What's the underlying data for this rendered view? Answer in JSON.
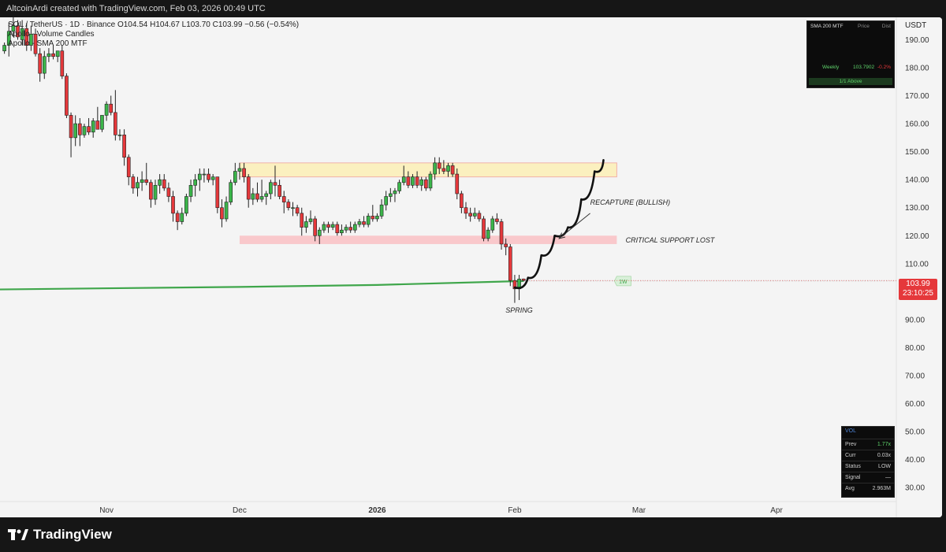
{
  "header": {
    "credit": "AltcoinArdi created with TradingView.com, Feb 03, 2026 00:49 UTC"
  },
  "legend": {
    "symbol_line": "SOL / TetherUS · 1D · Binance  O104.54  H104.67  L103.70  C103.99  −0.56 (−0.54%)",
    "indicator_1": "Apollo - Volume Candles",
    "indicator_2": "Apollo - SMA 200 MTF"
  },
  "currency": "USDT",
  "last_price": {
    "value": "103.99",
    "countdown": "23:10:25"
  },
  "sma_table": {
    "headers": [
      "SMA 200 MTF",
      "Price",
      "Dist"
    ],
    "row": {
      "tf": "Weekly",
      "price": "103.7902",
      "dist": "-0.2%"
    },
    "footer": "1/1 Above"
  },
  "vol_table": {
    "title": "VOL",
    "rows": [
      {
        "k": "Prev",
        "v": "1.77x"
      },
      {
        "k": "Curr",
        "v": "0.03x"
      },
      {
        "k": "Status",
        "v": "LOW"
      },
      {
        "k": "Signal",
        "v": "—"
      },
      {
        "k": "Avg",
        "v": "2.963M"
      }
    ]
  },
  "brand": "TradingView",
  "chart_data": {
    "type": "candlestick",
    "y_axis": {
      "ticks": [
        190,
        180,
        170,
        160,
        150,
        140,
        130,
        120,
        110,
        100,
        90,
        80,
        70,
        60,
        50,
        40,
        30
      ],
      "range": [
        25,
        198
      ]
    },
    "x_axis": {
      "labels": [
        "Nov",
        "Dec",
        "2026",
        "Feb",
        "Mar",
        "Apr"
      ],
      "label_dates": [
        "2025-11-01",
        "2025-12-01",
        "2026-01-01",
        "2026-02-01",
        "2026-03-01",
        "2026-04-01"
      ]
    },
    "x_range": [
      "2025-10-08",
      "2026-04-28"
    ],
    "candles": [
      [
        "2025-10-09",
        186,
        189,
        185,
        188
      ],
      [
        "2025-10-10",
        188,
        196,
        184,
        193
      ],
      [
        "2025-10-11",
        193,
        198,
        191,
        195
      ],
      [
        "2025-10-12",
        195,
        197,
        190,
        191
      ],
      [
        "2025-10-13",
        190,
        197,
        188,
        194
      ],
      [
        "2025-10-14",
        194,
        196,
        186,
        188
      ],
      [
        "2025-10-15",
        188,
        195,
        186,
        192
      ],
      [
        "2025-10-16",
        192,
        194,
        184,
        185
      ],
      [
        "2025-10-17",
        185,
        187,
        175,
        178
      ],
      [
        "2025-10-18",
        178,
        186,
        176,
        184
      ],
      [
        "2025-10-19",
        184,
        187,
        182,
        185
      ],
      [
        "2025-10-20",
        185,
        188,
        183,
        184
      ],
      [
        "2025-10-21",
        184,
        186,
        182,
        186
      ],
      [
        "2025-10-22",
        186,
        188,
        176,
        177
      ],
      [
        "2025-10-23",
        177,
        178,
        162,
        163
      ],
      [
        "2025-10-24",
        163,
        164,
        148,
        155
      ],
      [
        "2025-10-25",
        155,
        163,
        152,
        160
      ],
      [
        "2025-10-26",
        160,
        162,
        152,
        156
      ],
      [
        "2025-10-27",
        156,
        160,
        155,
        159
      ],
      [
        "2025-10-28",
        159,
        162,
        156,
        157
      ],
      [
        "2025-10-29",
        157,
        162,
        155,
        161
      ],
      [
        "2025-10-30",
        161,
        166,
        158,
        158
      ],
      [
        "2025-10-31",
        158,
        163,
        157,
        163
      ],
      [
        "2025-11-01",
        163,
        168,
        161,
        167
      ],
      [
        "2025-11-02",
        167,
        170,
        163,
        164
      ],
      [
        "2025-11-03",
        164,
        172,
        154,
        156
      ],
      [
        "2025-11-04",
        156,
        158,
        154,
        156
      ],
      [
        "2025-11-05",
        156,
        158,
        145,
        148
      ],
      [
        "2025-11-06",
        148,
        149,
        138,
        141
      ],
      [
        "2025-11-07",
        141,
        142,
        135,
        137
      ],
      [
        "2025-11-08",
        137,
        141,
        134,
        139
      ],
      [
        "2025-11-09",
        139,
        143,
        136,
        140
      ],
      [
        "2025-11-10",
        140,
        146,
        138,
        139
      ],
      [
        "2025-11-11",
        139,
        140,
        130,
        133
      ],
      [
        "2025-11-12",
        133,
        140,
        131,
        138
      ],
      [
        "2025-11-13",
        138,
        142,
        135,
        140
      ],
      [
        "2025-11-14",
        140,
        142,
        136,
        137
      ],
      [
        "2025-11-15",
        137,
        139,
        132,
        134
      ],
      [
        "2025-11-16",
        134,
        136,
        125,
        128
      ],
      [
        "2025-11-17",
        128,
        129,
        122,
        125
      ],
      [
        "2025-11-18",
        125,
        130,
        124,
        128
      ],
      [
        "2025-11-19",
        128,
        135,
        127,
        134
      ],
      [
        "2025-11-20",
        134,
        140,
        132,
        138
      ],
      [
        "2025-11-21",
        138,
        142,
        134,
        140
      ],
      [
        "2025-11-22",
        140,
        144,
        136,
        142
      ],
      [
        "2025-11-23",
        142,
        144,
        139,
        142
      ],
      [
        "2025-11-24",
        142,
        144,
        139,
        140
      ],
      [
        "2025-11-25",
        140,
        142,
        138,
        141
      ],
      [
        "2025-11-26",
        141,
        141,
        128,
        130
      ],
      [
        "2025-11-27",
        130,
        133,
        123,
        126
      ],
      [
        "2025-11-28",
        126,
        134,
        125,
        132
      ],
      [
        "2025-11-29",
        132,
        140,
        131,
        139
      ],
      [
        "2025-11-30",
        139,
        146,
        138,
        143
      ],
      [
        "2025-12-01",
        143,
        146,
        140,
        144
      ],
      [
        "2025-12-02",
        144,
        146,
        139,
        141
      ],
      [
        "2025-12-03",
        141,
        142,
        130,
        133
      ],
      [
        "2025-12-04",
        133,
        137,
        131,
        135
      ],
      [
        "2025-12-05",
        135,
        139,
        132,
        133
      ],
      [
        "2025-12-06",
        133,
        140,
        132,
        134
      ],
      [
        "2025-12-07",
        134,
        136,
        131,
        135
      ],
      [
        "2025-12-08",
        135,
        140,
        133,
        139
      ],
      [
        "2025-12-09",
        139,
        145,
        134,
        138
      ],
      [
        "2025-12-10",
        138,
        140,
        133,
        134
      ],
      [
        "2025-12-11",
        134,
        136,
        128,
        132
      ],
      [
        "2025-12-12",
        132,
        133,
        129,
        130
      ],
      [
        "2025-12-13",
        130,
        132,
        127,
        130
      ],
      [
        "2025-12-14",
        130,
        131,
        127,
        128
      ],
      [
        "2025-12-15",
        128,
        130,
        120,
        123
      ],
      [
        "2025-12-16",
        123,
        127,
        121,
        125
      ],
      [
        "2025-12-17",
        125,
        129,
        124,
        126
      ],
      [
        "2025-12-18",
        126,
        127,
        118,
        120
      ],
      [
        "2025-12-19",
        120,
        123,
        117,
        122
      ],
      [
        "2025-12-20",
        122,
        125,
        121,
        124
      ],
      [
        "2025-12-21",
        124,
        125,
        121,
        123
      ],
      [
        "2025-12-22",
        123,
        125,
        122,
        124
      ],
      [
        "2025-12-23",
        124,
        125,
        120,
        121
      ],
      [
        "2025-12-24",
        121,
        124,
        120,
        122
      ],
      [
        "2025-12-25",
        122,
        124,
        121,
        123
      ],
      [
        "2025-12-26",
        123,
        125,
        121,
        122
      ],
      [
        "2025-12-27",
        122,
        125,
        121,
        124
      ],
      [
        "2025-12-28",
        124,
        126,
        123,
        125
      ],
      [
        "2025-12-29",
        125,
        127,
        123,
        124
      ],
      [
        "2025-12-30",
        124,
        128,
        123,
        127
      ],
      [
        "2025-12-31",
        127,
        131,
        125,
        126
      ],
      [
        "2026-01-01",
        126,
        128,
        125,
        127
      ],
      [
        "2026-01-02",
        127,
        133,
        126,
        131
      ],
      [
        "2026-01-03",
        131,
        136,
        129,
        134
      ],
      [
        "2026-01-04",
        134,
        137,
        132,
        135
      ],
      [
        "2026-01-05",
        135,
        137,
        132,
        136
      ],
      [
        "2026-01-06",
        136,
        140,
        135,
        139
      ],
      [
        "2026-01-07",
        139,
        145,
        138,
        141
      ],
      [
        "2026-01-08",
        141,
        143,
        137,
        138
      ],
      [
        "2026-01-09",
        138,
        142,
        137,
        141
      ],
      [
        "2026-01-10",
        141,
        143,
        137,
        138
      ],
      [
        "2026-01-11",
        138,
        141,
        136,
        140
      ],
      [
        "2026-01-12",
        140,
        141,
        136,
        137
      ],
      [
        "2026-01-13",
        137,
        143,
        136,
        142
      ],
      [
        "2026-01-14",
        142,
        148,
        140,
        146
      ],
      [
        "2026-01-15",
        146,
        148,
        142,
        144
      ],
      [
        "2026-01-16",
        144,
        147,
        142,
        143
      ],
      [
        "2026-01-17",
        143,
        146,
        141,
        145
      ],
      [
        "2026-01-18",
        145,
        146,
        141,
        142
      ],
      [
        "2026-01-19",
        142,
        144,
        133,
        135
      ],
      [
        "2026-01-20",
        135,
        136,
        128,
        130
      ],
      [
        "2026-01-21",
        130,
        132,
        126,
        128
      ],
      [
        "2026-01-22",
        128,
        130,
        125,
        127
      ],
      [
        "2026-01-23",
        127,
        130,
        126,
        128
      ],
      [
        "2026-01-24",
        128,
        129,
        125,
        126
      ],
      [
        "2026-01-25",
        126,
        127,
        118,
        119
      ],
      [
        "2026-01-26",
        119,
        123,
        118,
        122
      ],
      [
        "2026-01-27",
        122,
        127,
        121,
        126
      ],
      [
        "2026-01-28",
        126,
        128,
        124,
        125
      ],
      [
        "2026-01-29",
        125,
        126,
        115,
        117
      ],
      [
        "2026-01-30",
        117,
        119,
        113,
        116
      ],
      [
        "2026-01-31",
        116,
        117,
        102,
        104
      ],
      [
        "2026-02-01",
        104,
        106,
        96,
        101
      ],
      [
        "2026-02-02",
        101,
        106,
        97,
        104.5
      ],
      [
        "2026-02-03",
        104.54,
        104.67,
        103.7,
        103.99
      ]
    ],
    "sma_200_weekly": {
      "label": "1W",
      "points": [
        [
          "2025-10-08",
          100.8
        ],
        [
          "2025-12-01",
          101.7
        ],
        [
          "2026-01-01",
          102.4
        ],
        [
          "2026-02-03",
          103.8
        ],
        [
          "2026-02-24",
          103.8
        ]
      ]
    },
    "zones": [
      {
        "name": "resistance",
        "from": "2025-12-01",
        "to": "2026-02-24",
        "low": 141,
        "high": 146,
        "color": "#fbf0bf"
      },
      {
        "name": "support",
        "from": "2025-12-01",
        "to": "2026-02-24",
        "low": 117,
        "high": 120,
        "color": "#f9c8cb"
      }
    ],
    "annotations": [
      {
        "text": "RECAPTURE (BULLISH)",
        "date": "2026-02-18",
        "price": 131
      },
      {
        "text": "CRITICAL SUPPORT LOST",
        "date": "2026-02-26",
        "price": 117.5
      },
      {
        "text": "SPRING",
        "date": "2026-02-02",
        "price": 92.5
      }
    ],
    "projection": [
      [
        "2026-02-01",
        101.5
      ],
      [
        "2026-02-04",
        105
      ],
      [
        "2026-02-07",
        113
      ],
      [
        "2026-02-10",
        120
      ],
      [
        "2026-02-13",
        123
      ],
      [
        "2026-02-16",
        133
      ],
      [
        "2026-02-19",
        143
      ],
      [
        "2026-02-21",
        147
      ]
    ],
    "arrow": {
      "from": [
        "2026-02-18",
        128
      ],
      "to": [
        "2026-02-11",
        119
      ]
    },
    "colors": {
      "up": "#3bb54a",
      "down": "#e5383b",
      "sma": "#3fa64b"
    }
  }
}
